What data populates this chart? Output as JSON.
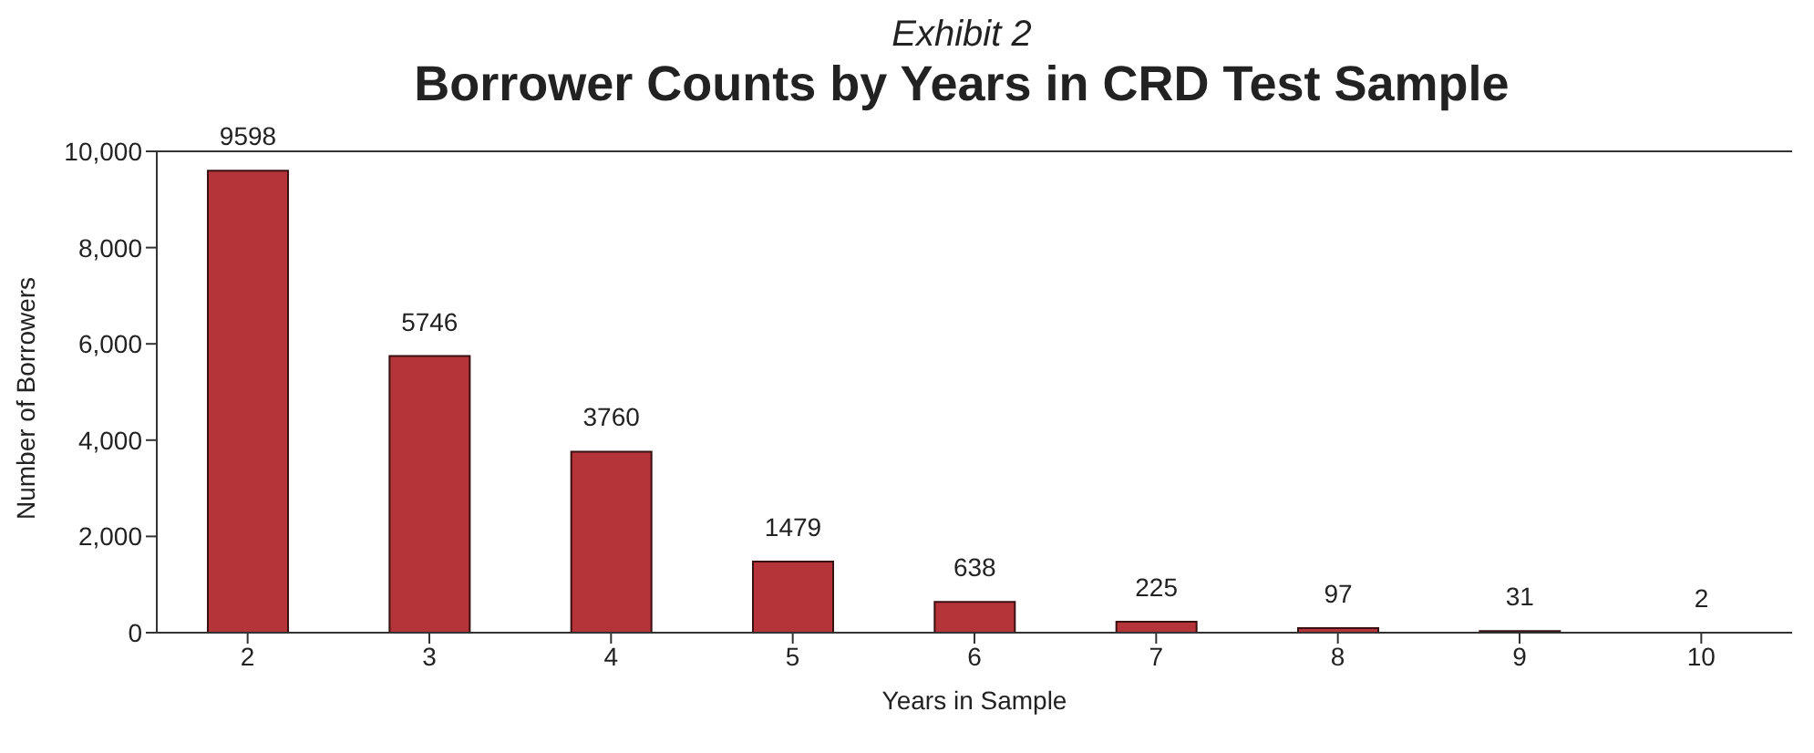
{
  "chart_data": {
    "type": "bar",
    "subtitle": "Exhibit 2",
    "title": "Borrower Counts by Years in CRD Test Sample",
    "categories": [
      "2",
      "3",
      "4",
      "5",
      "6",
      "7",
      "8",
      "9",
      "10"
    ],
    "values": [
      9598,
      5746,
      3760,
      1479,
      638,
      225,
      97,
      31,
      2
    ],
    "color": "#b5343a",
    "xlabel": "Years in Sample",
    "ylabel": "Number of Borrowers",
    "ylim": [
      0,
      10000
    ],
    "yticks": [
      0,
      {
        "value": 2000,
        "label": "2,000"
      },
      {
        "value": 4000,
        "label": "4,000"
      },
      {
        "value": 6000,
        "label": "6,000"
      },
      {
        "value": 8000,
        "label": "8,000"
      },
      {
        "value": 10000,
        "label": "10,000"
      }
    ],
    "grid": false,
    "data_labels": true
  }
}
